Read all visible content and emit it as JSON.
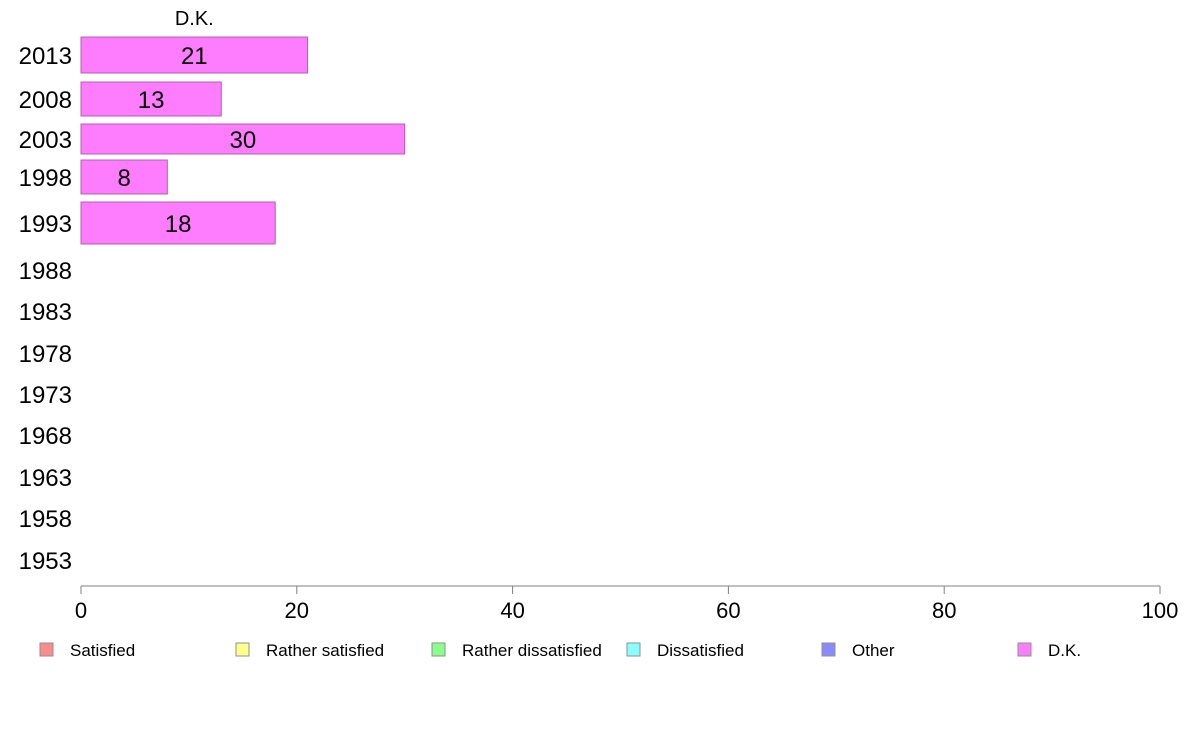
{
  "chart_data": {
    "type": "bar",
    "orientation": "horizontal",
    "stacked": true,
    "categories": [
      "2013",
      "2008",
      "2003",
      "1998",
      "1993",
      "1988",
      "1983",
      "1978",
      "1973",
      "1968",
      "1963",
      "1958",
      "1953"
    ],
    "series": [
      {
        "name": "Satisfied",
        "color": "#fe8b8b",
        "values": [
          null,
          null,
          null,
          null,
          null,
          null,
          null,
          null,
          null,
          null,
          null,
          null,
          null
        ]
      },
      {
        "name": "Rather satisfied",
        "color": "#ffff8a",
        "values": [
          null,
          null,
          null,
          null,
          null,
          null,
          null,
          null,
          null,
          null,
          null,
          null,
          null
        ]
      },
      {
        "name": "Rather dissatisfied",
        "color": "#8afe8a",
        "values": [
          null,
          null,
          null,
          null,
          null,
          null,
          null,
          null,
          null,
          null,
          null,
          null,
          null
        ]
      },
      {
        "name": "Dissatisfied",
        "color": "#8affff",
        "values": [
          null,
          null,
          null,
          null,
          null,
          null,
          null,
          null,
          null,
          null,
          null,
          null,
          null
        ]
      },
      {
        "name": "Other",
        "color": "#8a8afe",
        "values": [
          null,
          null,
          null,
          null,
          null,
          null,
          null,
          null,
          null,
          null,
          null,
          null,
          null
        ]
      },
      {
        "name": "D.K.",
        "color": "#fe7dfe",
        "values": [
          21,
          13,
          30,
          8,
          18,
          null,
          null,
          null,
          null,
          null,
          null,
          null,
          null
        ]
      }
    ],
    "visible_series_title": "D.K.",
    "xlim": [
      0,
      100
    ],
    "xticks": [
      "0",
      "20",
      "40",
      "60",
      "80",
      "100"
    ],
    "grid": false,
    "legend": "bottom"
  }
}
